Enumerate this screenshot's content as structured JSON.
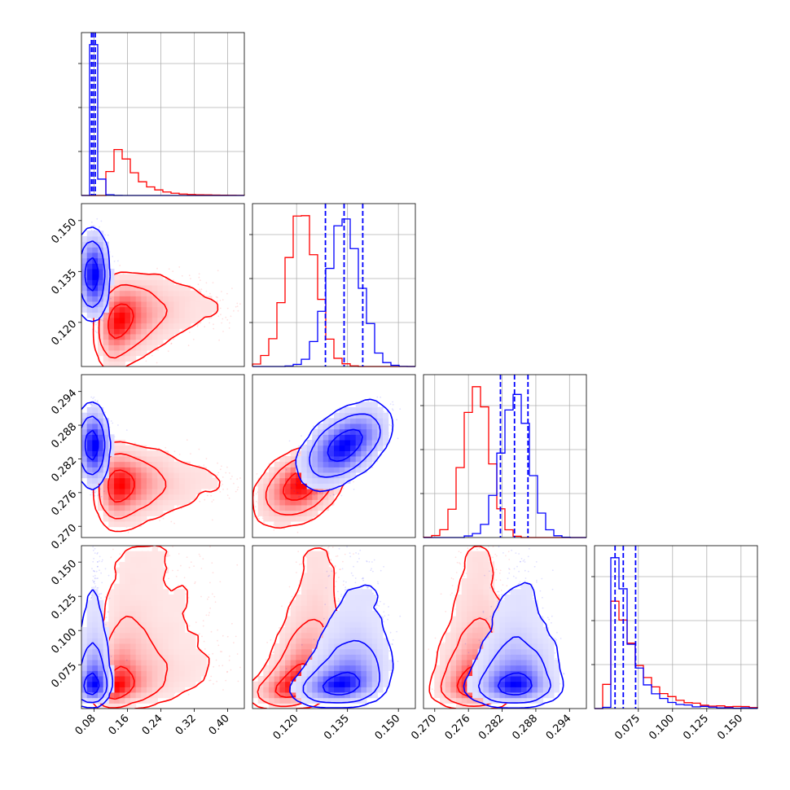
{
  "figure": {
    "type": "corner-plot"
  },
  "parameters": [
    {
      "range": [
        0.05,
        0.44
      ],
      "ticks": [
        "0.08",
        "0.16",
        "0.24",
        "0.32",
        "0.40"
      ],
      "tick_values": [
        0.08,
        0.16,
        0.24,
        0.32,
        0.4
      ]
    },
    {
      "range": [
        0.107,
        0.155
      ],
      "ticks": [
        "0.120",
        "0.135",
        "0.150"
      ],
      "tick_values": [
        0.12,
        0.135,
        0.15
      ]
    },
    {
      "range": [
        0.268,
        0.297
      ],
      "ticks": [
        "0.270",
        "0.276",
        "0.282",
        "0.288",
        "0.294"
      ],
      "tick_values": [
        0.27,
        0.276,
        0.282,
        0.288,
        0.294
      ]
    },
    {
      "range": [
        0.043,
        0.162
      ],
      "ticks": [
        "0.075",
        "0.100",
        "0.125",
        "0.150"
      ],
      "tick_values": [
        0.075,
        0.1,
        0.125,
        0.15
      ]
    }
  ],
  "colors": {
    "red": "#ff0000",
    "blue": "#0000ff",
    "grid": "#b0b0b0"
  },
  "chart_data": {
    "type": "corner",
    "grid": true,
    "series": [
      {
        "color": "#ff0000",
        "means": [
          0.155,
          0.1215,
          0.2775,
          0.067
        ],
        "sds": [
          0.035,
          0.0045,
          0.0023,
          0.014
        ],
        "skew": [
          0.7,
          0.0,
          0.0,
          0.9
        ],
        "corr": [
          [
            1,
            0.35,
            0.1,
            0.45
          ],
          [
            0.35,
            1,
            0.45,
            0.55
          ],
          [
            0.1,
            0.45,
            1,
            0.1
          ],
          [
            0.45,
            0.55,
            0.1,
            1
          ]
        ],
        "quantile_lines": []
      },
      {
        "color": "#0000ff",
        "means": [
          0.079,
          0.134,
          0.2843,
          0.064
        ],
        "sds": [
          0.0055,
          0.0047,
          0.0025,
          0.009
        ],
        "skew": [
          0.5,
          0.0,
          0.0,
          0.9
        ],
        "corr": [
          [
            1,
            0.0,
            0.0,
            0.2
          ],
          [
            0.0,
            1,
            0.55,
            0.4
          ],
          [
            0.0,
            0.55,
            1,
            0.1
          ],
          [
            0.2,
            0.4,
            0.1,
            1
          ]
        ],
        "quantile_lines": [
          [
            0.074,
            0.078,
            0.083
          ],
          [
            0.1285,
            0.134,
            0.1395
          ],
          [
            0.2817,
            0.2842,
            0.2866
          ],
          [
            0.058,
            0.064,
            0.073
          ]
        ]
      }
    ]
  }
}
